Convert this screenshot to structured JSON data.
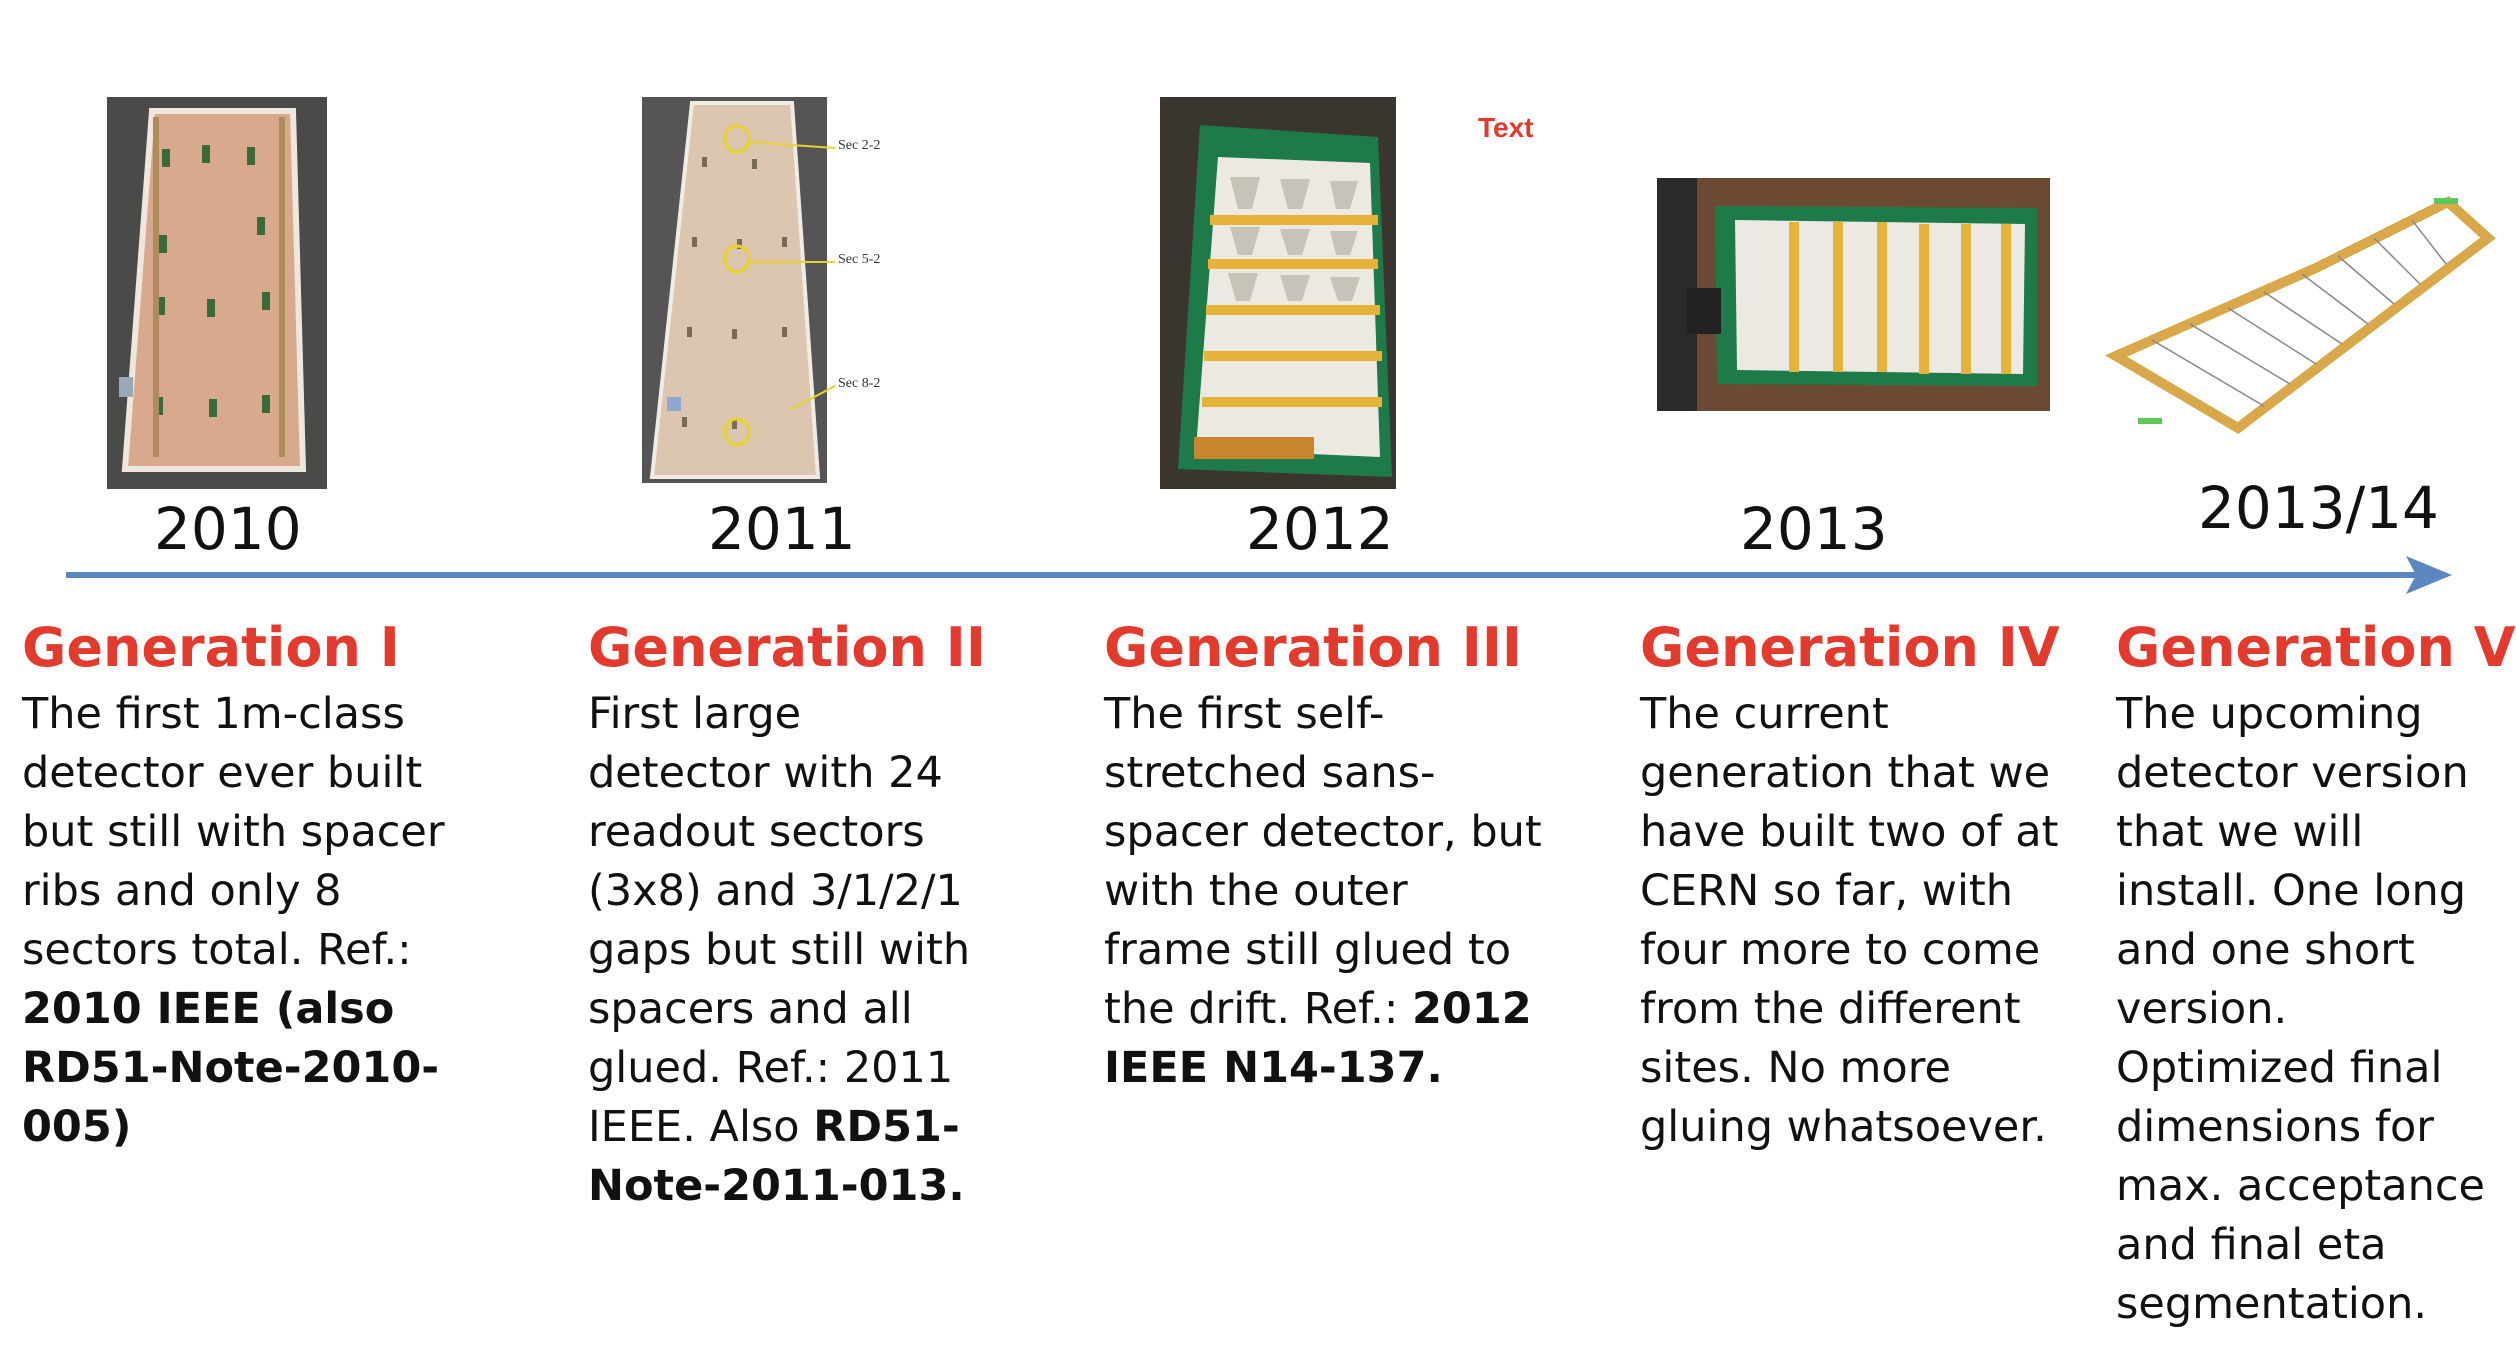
{
  "floating_label": "Text",
  "photo_labels": {
    "gen2": [
      "Sec 2-2",
      "Sec 5-2",
      "Sec 8-2"
    ]
  },
  "timeline": [
    {
      "year": "2010",
      "title": "Generation I",
      "text": "The first 1m-class detector ever built but still with spacer ribs and only 8 sectors total. Ref.: ",
      "ref_bold": "2010 IEEE (also RD51-Note-2010-005)",
      "photo": "gen1-detector-photo"
    },
    {
      "year": "2011",
      "title": "Generation II",
      "text": "First large detector with 24 readout sectors (3x8) and 3/1/2/1 gaps but still with spacers and all glued. Ref.: 2011 IEEE. Also ",
      "ref_bold": "RD51-Note-2011-013.",
      "photo": "gen2-detector-photo"
    },
    {
      "year": "2012",
      "title": "Generation III",
      "text": "The first self-stretched sans-spacer detector, but with the outer frame still glued to the drift. Ref.: ",
      "ref_bold": "2012 IEEE N14-137.",
      "photo": "gen3-detector-photo"
    },
    {
      "year": "2013",
      "title": "Generation IV",
      "text": "The current generation that we have built two of at CERN so far, with four more to come from the different sites. No more gluing whatsoever.",
      "ref_bold": "",
      "photo": "gen4-detector-photo"
    },
    {
      "year": "2013/14",
      "title": "Generation V",
      "text": "The upcoming detector version that we will install. One long and one short version. Optimized final dimensions for max. acceptance and final eta segmentation.",
      "ref_bold": "",
      "photo": "gen5-detector-drawing"
    }
  ],
  "colors": {
    "title_red": "#e23b2e",
    "arrow_blue": "#5b87c0",
    "board_green": "#1f7a4a",
    "pcb_tan": "#d9a98a"
  }
}
